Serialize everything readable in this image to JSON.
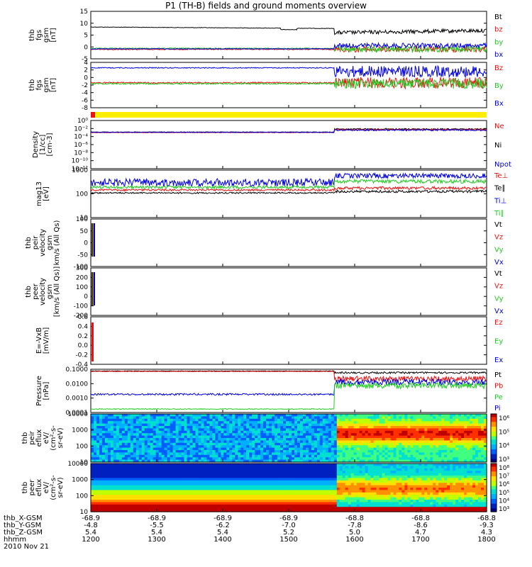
{
  "title": "P1 (TH-B) fields and ground moments overview",
  "date": "2010 Nov 21",
  "colors": {
    "black": "#000000",
    "red": "#ee1111",
    "green": "#22cc22",
    "blue": "#0000dd",
    "yellow": "#ffee00",
    "cyan": "#00bbbb"
  },
  "chart_data": [
    {
      "type": "line",
      "panel": "fgs",
      "ylabel": [
        "thb",
        "fgs",
        "gsm",
        "[nT]"
      ],
      "ylim": [
        -5,
        15
      ],
      "yticks": [
        "15",
        "10",
        "5",
        "0",
        "-5"
      ],
      "series": [
        {
          "name": "Bt",
          "color": "black"
        },
        {
          "name": "bz",
          "color": "red"
        },
        {
          "name": "by",
          "color": "green"
        },
        {
          "name": "bx",
          "color": "blue"
        }
      ]
    },
    {
      "type": "line",
      "panel": "fgs_dsl",
      "ylabel": [
        "thb",
        "fgs",
        "gsm",
        "[nT]"
      ],
      "ylim": [
        -8,
        4
      ],
      "yticks": [
        "4",
        "2",
        "0",
        "-2",
        "-4",
        "-6",
        "-8"
      ],
      "series": [
        {
          "name": "Bz",
          "color": "red"
        },
        {
          "name": "By",
          "color": "green"
        },
        {
          "name": "Bx",
          "color": "blue"
        }
      ]
    },
    {
      "type": "line",
      "panel": "mode_bar",
      "ylabel": [],
      "series": []
    },
    {
      "type": "line",
      "panel": "density",
      "ylabel": [
        "Density",
        "[1/cc]",
        "[cm-3]"
      ],
      "yscale": "log",
      "ylim": [
        1e-14,
        100.0
      ],
      "yticks": [
        "10⁰",
        "10⁻²",
        "10⁻⁴",
        "10⁻⁶",
        "10⁻⁸",
        "10⁻¹⁰",
        "10⁻¹²"
      ],
      "series": [
        {
          "name": "Ne",
          "color": "red"
        },
        {
          "name": "Ni",
          "color": "black"
        },
        {
          "name": "Npot",
          "color": "blue"
        }
      ]
    },
    {
      "type": "line",
      "panel": "temperature",
      "ylabel": [
        "mag13",
        "[eV]"
      ],
      "yscale": "log",
      "ylim": [
        10,
        2000
      ],
      "yticks": [
        "1000",
        "100",
        "10"
      ],
      "series": [
        {
          "name": "Te⊥",
          "color": "red"
        },
        {
          "name": "Te∥",
          "color": "black"
        },
        {
          "name": "Ti⊥",
          "color": "blue"
        },
        {
          "name": "Ti∥",
          "color": "green"
        }
      ]
    },
    {
      "type": "line",
      "panel": "peir_velocity",
      "ylabel": [
        "thb",
        "peir",
        "velocity",
        "gsm",
        "km/s (All Qs)"
      ],
      "ylim": [
        -100,
        100
      ],
      "yticks": [
        "100",
        "50",
        "0",
        "-50",
        "-100"
      ],
      "series": [
        {
          "name": "Vt",
          "color": "black"
        },
        {
          "name": "Vz",
          "color": "red"
        },
        {
          "name": "Vy",
          "color": "green"
        },
        {
          "name": "Vx",
          "color": "blue"
        }
      ]
    },
    {
      "type": "line",
      "panel": "peer_velocity",
      "ylabel": [
        "thb",
        "peer",
        "velocity",
        "gsm",
        "[km/s (All Qs)]"
      ],
      "ylim": [
        -200,
        300
      ],
      "yticks": [
        "300",
        "200",
        "100",
        "0",
        "-100",
        "-200"
      ],
      "series": [
        {
          "name": "Vt",
          "color": "black"
        },
        {
          "name": "Vz",
          "color": "red"
        },
        {
          "name": "Vy",
          "color": "green"
        },
        {
          "name": "Vx",
          "color": "blue"
        }
      ]
    },
    {
      "type": "line",
      "panel": "efield",
      "ylabel": [
        "E=-VxB",
        "[mV/m]"
      ],
      "ylim": [
        -0.4,
        0.6
      ],
      "yticks": [
        "0.6",
        "0.4",
        "0.2",
        "0.0",
        "-0.2",
        "-0.4"
      ],
      "series": [
        {
          "name": "Ez",
          "color": "red"
        },
        {
          "name": "Ey",
          "color": "green"
        },
        {
          "name": "Ex",
          "color": "blue"
        }
      ]
    },
    {
      "type": "line",
      "panel": "pressure",
      "ylabel": [
        "Pressure",
        "[nPa]"
      ],
      "yscale": "log",
      "ylim": [
        0.0001,
        0.1
      ],
      "yticks": [
        "0.1000",
        "0.0100",
        "0.0010",
        "0.0001"
      ],
      "series": [
        {
          "name": "Pt",
          "color": "black"
        },
        {
          "name": "Pb",
          "color": "red"
        },
        {
          "name": "Pe",
          "color": "green"
        },
        {
          "name": "Pi",
          "color": "blue"
        }
      ]
    },
    {
      "type": "heatmap",
      "panel": "peir_eflux",
      "ylabel": [
        "thb",
        "peir",
        "eflux",
        "eV/",
        "(cm²-s-",
        "sr-eV)"
      ],
      "yscale": "log",
      "ylim": [
        10,
        20000
      ],
      "yticks": [
        "10000",
        "1000",
        "100",
        "10"
      ],
      "colorbar": [
        "10⁶",
        "10⁵",
        "10⁴",
        "10³"
      ]
    },
    {
      "type": "heatmap",
      "panel": "peer_eflux",
      "ylabel": [
        "thb",
        "peer",
        "eflux",
        "eV/",
        "(cm²-s-",
        "sr-eV)"
      ],
      "yscale": "log",
      "ylim": [
        10,
        20000
      ],
      "yticks": [
        "10000",
        "1000",
        "100",
        "10"
      ],
      "colorbar": [
        "10⁸",
        "10⁷",
        "10⁶",
        "10⁵",
        "10⁴",
        "10³"
      ]
    }
  ],
  "x_axis": {
    "ticks": [
      {
        "label": "1200",
        "X": "-68.9",
        "Y": "-4.8",
        "Z": "5.4"
      },
      {
        "label": "1300",
        "X": "-68.9",
        "Y": "-5.5",
        "Z": "5.4"
      },
      {
        "label": "1400",
        "X": "-68.9",
        "Y": "-6.2",
        "Z": "5.4"
      },
      {
        "label": "1500",
        "X": "-68.9",
        "Y": "-7.0",
        "Z": "5.2"
      },
      {
        "label": "1600",
        "X": "-68.8",
        "Y": "-7.8",
        "Z": "5.0"
      },
      {
        "label": "1700",
        "X": "-68.8",
        "Y": "-8.6",
        "Z": "4.7"
      },
      {
        "label": "1800",
        "X": "-68.8",
        "Y": "-9.3",
        "Z": "4.3"
      }
    ],
    "row_labels": [
      "thb_X-GSM",
      "thb_Y-GSM",
      "thb_Z-GSM",
      "hhmm"
    ]
  }
}
